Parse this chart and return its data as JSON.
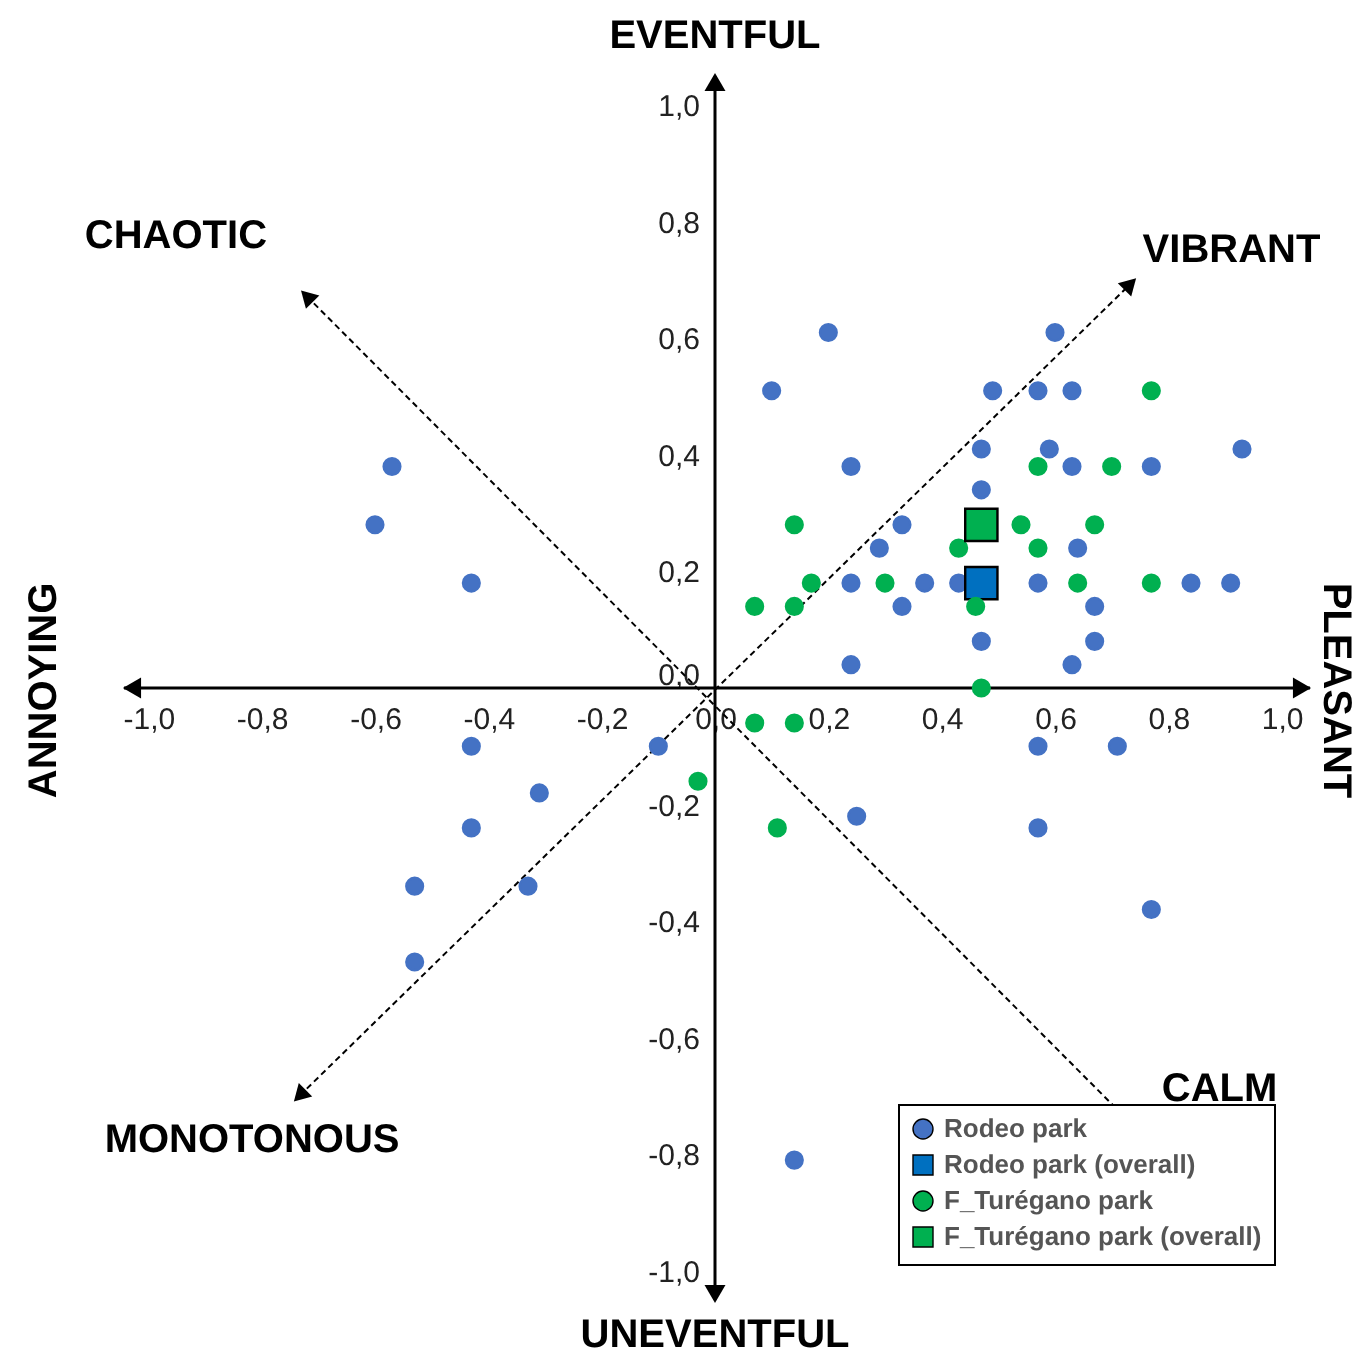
{
  "chart_data": {
    "type": "scatter",
    "xlim": [
      -1.05,
      1.05
    ],
    "ylim": [
      -1.05,
      1.05
    ],
    "xticks": [
      {
        "value": -1.0,
        "label": "-1,0"
      },
      {
        "value": -0.8,
        "label": "-0,8"
      },
      {
        "value": -0.6,
        "label": "-0,6"
      },
      {
        "value": -0.4,
        "label": "-0,4"
      },
      {
        "value": -0.2,
        "label": "-0,2"
      },
      {
        "value": 0,
        "label": "0,0"
      },
      {
        "value": 0.2,
        "label": "0,2"
      },
      {
        "value": 0.4,
        "label": "0,4"
      },
      {
        "value": 0.6,
        "label": "0,6"
      },
      {
        "value": 0.8,
        "label": "0,8"
      },
      {
        "value": 1.0,
        "label": "1,0"
      }
    ],
    "yticks": [
      {
        "value": -1.0,
        "label": "-1,0"
      },
      {
        "value": -0.8,
        "label": "-0,8"
      },
      {
        "value": -0.6,
        "label": "-0,6"
      },
      {
        "value": -0.4,
        "label": "-0,4"
      },
      {
        "value": -0.2,
        "label": "-0,2"
      },
      {
        "value": 0,
        "label": "0,0"
      },
      {
        "value": 0.2,
        "label": "0,2"
      },
      {
        "value": 0.4,
        "label": "0,4"
      },
      {
        "value": 0.6,
        "label": "0,6"
      },
      {
        "value": 0.8,
        "label": "0,8"
      },
      {
        "value": 1.0,
        "label": "1,0"
      }
    ],
    "grid": false,
    "legend": "bottom right",
    "annotations": [
      "EVENTFUL",
      "UNEVENTFUL",
      "PLEASANT",
      "ANNOYING",
      "CHAOTIC",
      "VIBRANT",
      "MONOTONOUS",
      "CALM"
    ],
    "series": [
      {
        "name": "Rodeo park",
        "color": "#4472c4",
        "marker": "circle",
        "x": [
          0.2,
          0.6,
          0.1,
          0.49,
          0.57,
          0.63,
          0.47,
          0.59,
          0.93,
          -0.57,
          0.24,
          0.63,
          0.77,
          0.47,
          -0.6,
          0.33,
          0.29,
          0.64,
          -0.43,
          0.24,
          0.37,
          0.43,
          0.57,
          0.84,
          0.91,
          0.33,
          0.67,
          0.47,
          0.67,
          0.24,
          0.63,
          -0.43,
          -0.1,
          0.57,
          0.71,
          -0.31,
          -0.43,
          0.25,
          0.57,
          -0.53,
          -0.33,
          0.77,
          -0.53,
          0.14
        ],
        "values": [
          0.61,
          0.61,
          0.51,
          0.51,
          0.51,
          0.51,
          0.41,
          0.41,
          0.41,
          0.38,
          0.38,
          0.38,
          0.38,
          0.34,
          0.28,
          0.28,
          0.24,
          0.24,
          0.18,
          0.18,
          0.18,
          0.18,
          0.18,
          0.18,
          0.18,
          0.14,
          0.14,
          0.08,
          0.08,
          0.04,
          0.04,
          -0.1,
          -0.1,
          -0.1,
          -0.1,
          -0.18,
          -0.24,
          -0.22,
          -0.24,
          -0.34,
          -0.34,
          -0.38,
          -0.47,
          -0.81
        ]
      },
      {
        "name": "Rodeo park (overall)",
        "color": "#0070c0",
        "marker": "square",
        "x": [
          0.47
        ],
        "values": [
          0.18
        ]
      },
      {
        "name": "F_Turégano park",
        "color": "#00b050",
        "marker": "circle",
        "x": [
          0.77,
          0.57,
          0.7,
          0.14,
          0.54,
          0.67,
          0.43,
          0.57,
          0.17,
          0.3,
          0.64,
          0.77,
          0.07,
          0.14,
          0.46,
          0.47,
          0.07,
          0.14,
          -0.03,
          0.11
        ],
        "values": [
          0.51,
          0.38,
          0.38,
          0.28,
          0.28,
          0.28,
          0.24,
          0.24,
          0.18,
          0.18,
          0.18,
          0.18,
          0.14,
          0.14,
          0.14,
          0.0,
          -0.06,
          -0.06,
          -0.16,
          -0.24
        ]
      },
      {
        "name": "F_Turégano park (overall)",
        "color": "#00b050",
        "marker": "square",
        "x": [
          0.47
        ],
        "values": [
          0.28
        ]
      }
    ]
  }
}
